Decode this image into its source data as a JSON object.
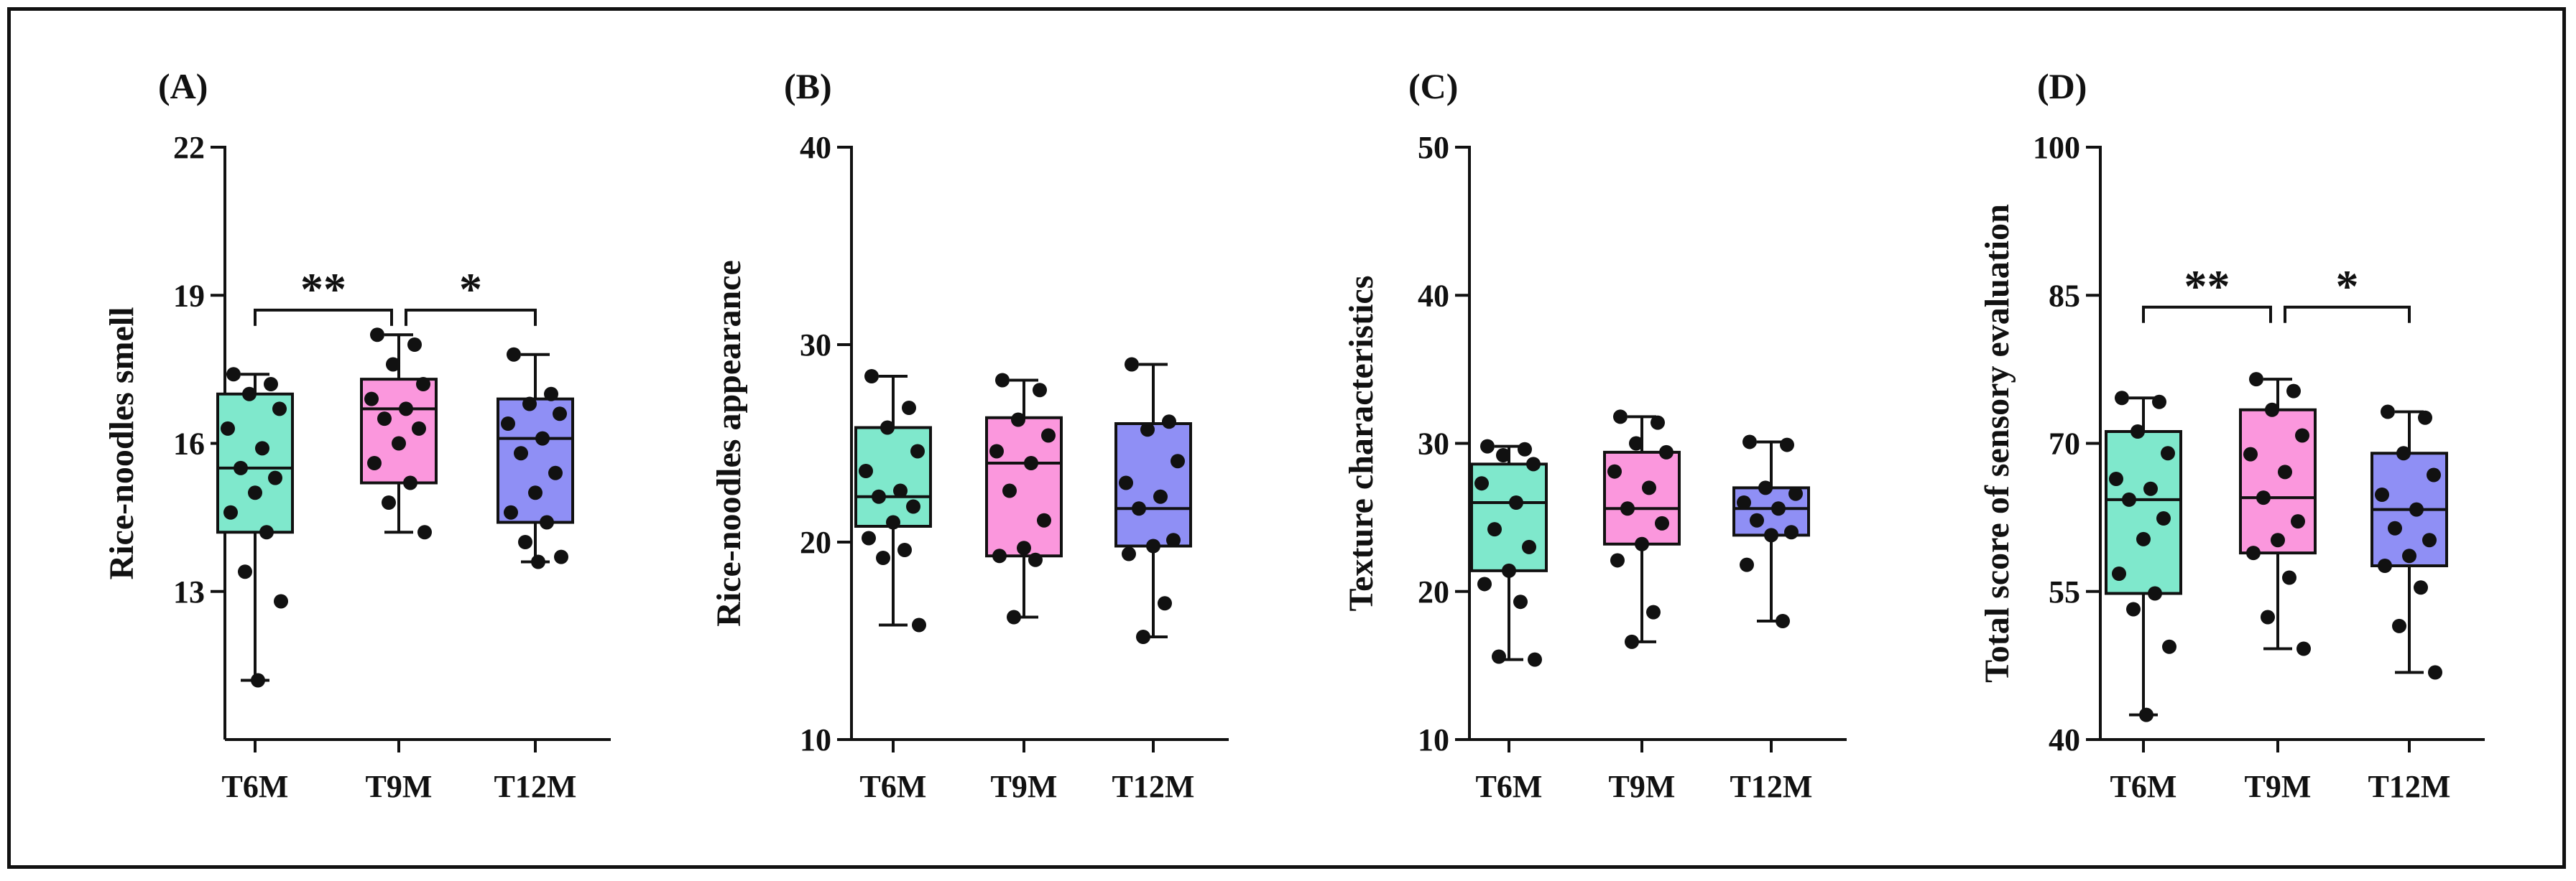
{
  "chart_data": [
    {
      "type": "box",
      "panel_label": "(A)",
      "ylabel": "Rice-noodles smell",
      "ylim": [
        10,
        22
      ],
      "yticks": [
        "22",
        "19",
        "16",
        "13"
      ],
      "ytick_values": [
        22,
        19,
        16,
        13
      ],
      "categories": [
        "T6M",
        "T9M",
        "T12M"
      ],
      "boxes": [
        {
          "name": "T6M",
          "color": "#7fe8cc",
          "min": 11.2,
          "q1": 14.2,
          "median": 15.5,
          "q3": 17.0,
          "max": 17.4,
          "points": [
            17.4,
            17.2,
            17.0,
            16.7,
            16.3,
            15.9,
            15.5,
            15.3,
            15.0,
            14.6,
            14.2,
            13.4,
            12.8,
            11.2
          ]
        },
        {
          "name": "T9M",
          "color": "#fb97dd",
          "min": 14.2,
          "q1": 15.2,
          "median": 16.7,
          "q3": 17.3,
          "max": 18.2,
          "points": [
            18.2,
            18.0,
            17.6,
            17.2,
            16.9,
            16.7,
            16.5,
            16.3,
            16.0,
            15.6,
            15.2,
            14.8,
            14.2
          ]
        },
        {
          "name": "T12M",
          "color": "#8f8ff5",
          "min": 13.6,
          "q1": 14.4,
          "median": 16.1,
          "q3": 16.9,
          "max": 17.8,
          "points": [
            17.8,
            17.0,
            16.8,
            16.6,
            16.4,
            16.1,
            15.8,
            15.4,
            15.0,
            14.6,
            14.4,
            14.0,
            13.7,
            13.6
          ]
        }
      ],
      "significance": [
        {
          "from": "T6M",
          "to": "T9M",
          "label": "**"
        },
        {
          "from": "T9M",
          "to": "T12M",
          "label": "*"
        }
      ]
    },
    {
      "type": "box",
      "panel_label": "(B)",
      "ylabel": "Rice-noodles appearance",
      "ylim": [
        10,
        40
      ],
      "yticks": [
        "40",
        "30",
        "20",
        "10"
      ],
      "ytick_values": [
        40,
        30,
        20,
        10
      ],
      "categories": [
        "T6M",
        "T9M",
        "T12M"
      ],
      "boxes": [
        {
          "name": "T6M",
          "color": "#7fe8cc",
          "min": 15.8,
          "q1": 20.8,
          "median": 22.3,
          "q3": 25.8,
          "max": 28.4,
          "points": [
            28.4,
            26.8,
            25.8,
            24.6,
            23.6,
            22.6,
            22.3,
            21.8,
            21.0,
            20.2,
            19.6,
            19.2,
            15.8
          ]
        },
        {
          "name": "T9M",
          "color": "#fb97dd",
          "min": 16.2,
          "q1": 19.3,
          "median": 24.0,
          "q3": 26.3,
          "max": 28.2,
          "points": [
            28.2,
            27.7,
            26.2,
            25.4,
            24.6,
            24.0,
            22.6,
            21.1,
            19.7,
            19.3,
            19.1,
            16.2
          ]
        },
        {
          "name": "T12M",
          "color": "#8f8ff5",
          "min": 15.2,
          "q1": 19.8,
          "median": 21.7,
          "q3": 26.0,
          "max": 29.0,
          "points": [
            29.0,
            26.1,
            25.7,
            24.1,
            23.0,
            22.3,
            21.7,
            20.1,
            19.8,
            19.4,
            16.9,
            15.2
          ]
        }
      ],
      "significance": []
    },
    {
      "type": "box",
      "panel_label": "(C)",
      "ylabel": "Texture characteristics",
      "ylim": [
        10,
        50
      ],
      "yticks": [
        "50",
        "40",
        "30",
        "20",
        "10"
      ],
      "ytick_values": [
        50,
        40,
        30,
        20,
        10
      ],
      "categories": [
        "T6M",
        "T9M",
        "T12M"
      ],
      "boxes": [
        {
          "name": "T6M",
          "color": "#7fe8cc",
          "min": 15.4,
          "q1": 21.4,
          "median": 26.0,
          "q3": 28.6,
          "max": 29.8,
          "points": [
            29.8,
            29.6,
            29.2,
            28.6,
            27.3,
            26.0,
            24.2,
            23.0,
            21.4,
            20.5,
            19.3,
            15.6,
            15.4
          ]
        },
        {
          "name": "T9M",
          "color": "#fb97dd",
          "min": 16.6,
          "q1": 23.2,
          "median": 25.6,
          "q3": 29.4,
          "max": 31.8,
          "points": [
            31.8,
            31.4,
            30.0,
            29.4,
            28.1,
            27.0,
            25.6,
            24.6,
            23.2,
            22.1,
            18.6,
            16.6
          ]
        },
        {
          "name": "T12M",
          "color": "#8f8ff5",
          "min": 18.0,
          "q1": 23.8,
          "median": 25.6,
          "q3": 27.0,
          "max": 30.1,
          "points": [
            30.1,
            29.9,
            27.0,
            26.6,
            26.0,
            25.6,
            24.8,
            24.0,
            23.8,
            21.8,
            18.0
          ]
        }
      ],
      "significance": []
    },
    {
      "type": "box",
      "panel_label": "(D)",
      "ylabel": "Total score of sensory evaluation",
      "ylim": [
        40,
        100
      ],
      "yticks": [
        "100",
        "85",
        "70",
        "55",
        "40"
      ],
      "ytick_values": [
        100,
        85,
        70,
        55,
        40
      ],
      "categories": [
        "T6M",
        "T9M",
        "T12M"
      ],
      "boxes": [
        {
          "name": "T6M",
          "color": "#7fe8cc",
          "min": 42.5,
          "q1": 54.8,
          "median": 64.3,
          "q3": 71.2,
          "max": 74.6,
          "points": [
            74.6,
            74.2,
            71.2,
            69.0,
            66.4,
            65.4,
            64.3,
            62.4,
            60.3,
            56.8,
            54.8,
            53.2,
            49.4,
            42.5
          ]
        },
        {
          "name": "T9M",
          "color": "#fb97dd",
          "min": 49.2,
          "q1": 58.9,
          "median": 64.5,
          "q3": 73.4,
          "max": 76.5,
          "points": [
            76.5,
            75.3,
            73.4,
            70.8,
            68.9,
            67.1,
            64.5,
            62.1,
            60.2,
            58.9,
            56.4,
            52.4,
            49.2
          ]
        },
        {
          "name": "T12M",
          "color": "#8f8ff5",
          "min": 46.8,
          "q1": 57.6,
          "median": 63.3,
          "q3": 69.0,
          "max": 73.2,
          "points": [
            73.2,
            72.6,
            69.0,
            66.8,
            64.8,
            63.3,
            61.4,
            60.2,
            58.6,
            57.6,
            55.4,
            51.5,
            46.8
          ]
        }
      ],
      "significance": [
        {
          "from": "T6M",
          "to": "T9M",
          "label": "**"
        },
        {
          "from": "T9M",
          "to": "T12M",
          "label": "*"
        }
      ]
    }
  ]
}
